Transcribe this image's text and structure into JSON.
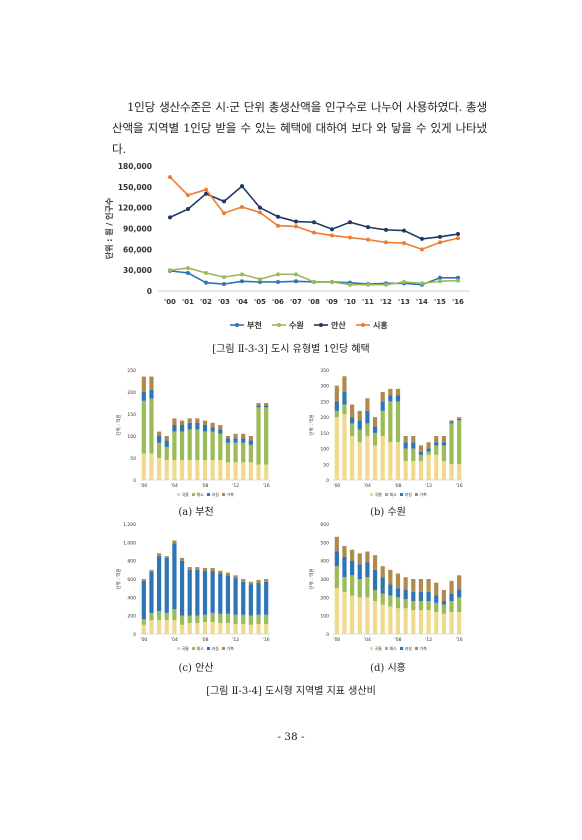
{
  "text": {
    "paragraph": "1인당 생산수준은 시·군 단위 총생산액을 인구수로 나누어 사용하였다. 총생산액을 지역별 1인당 받을 수 있는 혜택에 대하여 보다 와 닿을 수 있게 나타냈다.",
    "fig3_caption": "[그림 Ⅱ-3-3] 도시 유형별 1인당 혜택",
    "fig4_caption": "[그림 Ⅱ-3-4] 도시형 지역별 지표 생산비",
    "sub_a": "(a) 부천",
    "sub_b": "(b) 수원",
    "sub_c": "(c) 안산",
    "sub_d": "(d) 시흥",
    "page_number": "- 38 -"
  },
  "chart_data": [
    {
      "type": "line",
      "ylabel": "단위 : 원 / 인구수",
      "ylim": [
        0,
        180000
      ],
      "yticks": [
        "0",
        "30,000",
        "60,000",
        "90,000",
        "120,000",
        "150,000",
        "180,000"
      ],
      "categories": [
        "'00",
        "'01",
        "'02",
        "'03",
        "'04",
        "'05",
        "'06",
        "'07",
        "'08",
        "'09",
        "'10",
        "'11",
        "'12",
        "'13",
        "'14",
        "'15",
        "'16"
      ],
      "legend_position": "bottom",
      "series": [
        {
          "name": "부천",
          "color": "#2e75b6",
          "values": [
            29000,
            26000,
            12000,
            10000,
            14000,
            13000,
            13000,
            14000,
            13000,
            13000,
            12000,
            10000,
            11000,
            11000,
            9000,
            19000,
            19000
          ]
        },
        {
          "name": "수원",
          "color": "#9bbb59",
          "values": [
            30000,
            33000,
            26000,
            20000,
            24000,
            17000,
            24000,
            24000,
            13000,
            13000,
            9000,
            9000,
            9000,
            13000,
            11000,
            14000,
            15000
          ]
        },
        {
          "name": "안산",
          "color": "#1f3864",
          "values": [
            106000,
            118000,
            140000,
            129000,
            151000,
            120000,
            107000,
            100000,
            99000,
            89000,
            99000,
            92000,
            88000,
            87000,
            75000,
            78000,
            82000
          ]
        },
        {
          "name": "시흥",
          "color": "#ed7d31",
          "values": [
            164000,
            138000,
            146000,
            112000,
            121000,
            113000,
            94000,
            93000,
            84000,
            80000,
            77000,
            74000,
            70000,
            69000,
            60000,
            70000,
            76000
          ]
        }
      ]
    },
    {
      "type": "bar",
      "stacked": true,
      "id": "a",
      "ylabel": "단위 : 억원",
      "ylim": [
        0,
        250
      ],
      "yticks": [
        "0",
        "50",
        "100",
        "150",
        "200",
        "250"
      ],
      "xticks": [
        "'00",
        "'04",
        "'08",
        "'12",
        "'16"
      ],
      "legend": [
        "곡물",
        "채소",
        "과실",
        "가축"
      ],
      "series": [
        {
          "name": "곡물",
          "color": "#f0d98c",
          "values": [
            60,
            60,
            50,
            45,
            45,
            45,
            45,
            45,
            45,
            45,
            45,
            40,
            40,
            40,
            40,
            35,
            35
          ]
        },
        {
          "name": "채소",
          "color": "#9bbb59",
          "values": [
            120,
            125,
            35,
            30,
            65,
            65,
            70,
            70,
            65,
            65,
            60,
            45,
            45,
            45,
            40,
            130,
            130
          ]
        },
        {
          "name": "과실",
          "color": "#2e75b6",
          "values": [
            20,
            20,
            15,
            15,
            15,
            15,
            15,
            15,
            15,
            10,
            10,
            10,
            10,
            10,
            10,
            5,
            5
          ]
        },
        {
          "name": "가축",
          "color": "#b08a4a",
          "values": [
            35,
            30,
            10,
            10,
            15,
            10,
            10,
            10,
            10,
            10,
            10,
            5,
            10,
            10,
            10,
            5,
            5
          ]
        }
      ]
    },
    {
      "type": "bar",
      "stacked": true,
      "id": "b",
      "ylabel": "단위 : 억원",
      "ylim": [
        0,
        350
      ],
      "yticks": [
        "0",
        "50",
        "100",
        "150",
        "200",
        "250",
        "300",
        "350"
      ],
      "xticks": [
        "'00",
        "'04",
        "'08",
        "'12",
        "'16"
      ],
      "legend": [
        "곡물",
        "채소",
        "과실",
        "가축"
      ],
      "series": [
        {
          "name": "곡물",
          "color": "#f0d98c",
          "values": [
            200,
            210,
            140,
            120,
            140,
            110,
            140,
            120,
            120,
            60,
            60,
            60,
            80,
            80,
            60,
            50,
            50
          ]
        },
        {
          "name": "채소",
          "color": "#9bbb59",
          "values": [
            20,
            30,
            40,
            40,
            40,
            40,
            80,
            130,
            130,
            40,
            40,
            20,
            10,
            30,
            50,
            130,
            140
          ]
        },
        {
          "name": "과실",
          "color": "#2e75b6",
          "values": [
            30,
            40,
            20,
            30,
            40,
            20,
            30,
            20,
            20,
            20,
            20,
            10,
            10,
            10,
            10,
            5,
            5
          ]
        },
        {
          "name": "가축",
          "color": "#b08a4a",
          "values": [
            50,
            50,
            40,
            30,
            40,
            30,
            30,
            20,
            20,
            20,
            20,
            20,
            20,
            20,
            20,
            5,
            5
          ]
        }
      ]
    },
    {
      "type": "bar",
      "stacked": true,
      "id": "c",
      "ylabel": "단위 : 억원",
      "ylim": [
        0,
        1200
      ],
      "yticks": [
        "0",
        "200",
        "400",
        "600",
        "800",
        "1,000",
        "1,200"
      ],
      "xticks": [
        "'00",
        "'04",
        "'08",
        "'12",
        "'16"
      ],
      "legend": [
        "곡물",
        "채소",
        "과실",
        "가축"
      ],
      "series": [
        {
          "name": "곡물",
          "color": "#f0d98c",
          "values": [
            100,
            150,
            150,
            150,
            150,
            100,
            120,
            120,
            130,
            130,
            120,
            120,
            110,
            110,
            100,
            110,
            110
          ]
        },
        {
          "name": "채소",
          "color": "#9bbb59",
          "values": [
            60,
            80,
            100,
            80,
            120,
            100,
            80,
            80,
            80,
            100,
            100,
            100,
            100,
            100,
            100,
            100,
            100
          ]
        },
        {
          "name": "과실",
          "color": "#2e75b6",
          "values": [
            420,
            450,
            600,
            600,
            720,
            600,
            500,
            500,
            480,
            460,
            440,
            420,
            400,
            360,
            340,
            350,
            360
          ]
        },
        {
          "name": "가축",
          "color": "#b08a4a",
          "values": [
            20,
            20,
            30,
            20,
            30,
            30,
            30,
            30,
            30,
            30,
            30,
            30,
            30,
            30,
            30,
            30,
            30
          ]
        }
      ]
    },
    {
      "type": "bar",
      "stacked": true,
      "id": "d",
      "ylabel": "단위 : 억원",
      "ylim": [
        0,
        600
      ],
      "yticks": [
        "0",
        "100",
        "200",
        "300",
        "400",
        "500",
        "600"
      ],
      "xticks": [
        "'00",
        "'04",
        "'08",
        "'12",
        "'16"
      ],
      "legend": [
        "곡물",
        "채소",
        "과실",
        "가축"
      ],
      "series": [
        {
          "name": "곡물",
          "color": "#f0d98c",
          "values": [
            250,
            230,
            210,
            200,
            200,
            180,
            160,
            150,
            140,
            140,
            130,
            130,
            130,
            120,
            110,
            120,
            120
          ]
        },
        {
          "name": "채소",
          "color": "#9bbb59",
          "values": [
            120,
            80,
            110,
            100,
            110,
            60,
            60,
            60,
            60,
            50,
            50,
            50,
            50,
            50,
            50,
            60,
            80
          ]
        },
        {
          "name": "과실",
          "color": "#2e75b6",
          "values": [
            80,
            110,
            80,
            80,
            80,
            110,
            90,
            60,
            50,
            50,
            50,
            50,
            50,
            40,
            20,
            40,
            40
          ]
        },
        {
          "name": "가축",
          "color": "#b08a4a",
          "values": [
            80,
            60,
            60,
            60,
            60,
            80,
            60,
            80,
            80,
            70,
            70,
            70,
            70,
            70,
            60,
            70,
            80
          ]
        }
      ]
    }
  ]
}
